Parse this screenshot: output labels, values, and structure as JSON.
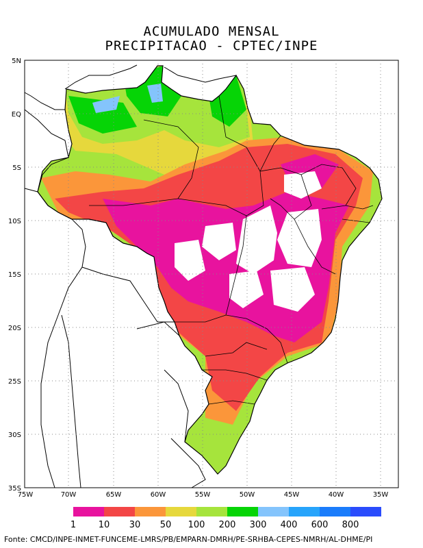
{
  "title": {
    "line1": "ACUMULADO MENSAL",
    "line2": "PRECIPITACAO - CPTEC/INPE"
  },
  "axes": {
    "lat_labels": [
      "5N",
      "EQ",
      "5S",
      "10S",
      "15S",
      "20S",
      "25S",
      "30S",
      "35S"
    ],
    "lon_labels": [
      "75W",
      "70W",
      "65W",
      "60W",
      "55W",
      "50W",
      "45W",
      "40W",
      "35W"
    ]
  },
  "legend": {
    "colors": [
      "#e8139e",
      "#f34646",
      "#fb963a",
      "#e6d83c",
      "#a6e43c",
      "#06d406",
      "#84c4fc",
      "#27a4fb",
      "#1a7cfb",
      "#2a4cfc"
    ],
    "labels": [
      "1",
      "10",
      "30",
      "50",
      "100",
      "200",
      "300",
      "400",
      "600",
      "800"
    ]
  },
  "source": "Fonte: CMCD/INPE-INMET-FUNCEME-LMRS/PB/EMPARN-DMRH/PE-SRHBA-CEPES-NMRH/AL-DHME/PI"
}
